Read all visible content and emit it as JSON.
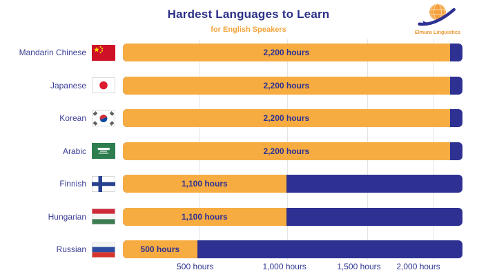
{
  "brand": {
    "name": "Elmura Linguistics"
  },
  "chart_data": {
    "type": "bar",
    "orientation": "horizontal",
    "title": "Hardest Languages to Learn",
    "subtitle": "for English Speakers",
    "unit": "hours",
    "categories": [
      "Mandarin Chinese",
      "Japanese",
      "Korean",
      "Arabic",
      "Finnish",
      "Hungarian",
      "Russian"
    ],
    "values": [
      2200,
      2200,
      2200,
      2200,
      1100,
      1100,
      500
    ],
    "rows": [
      {
        "label": "Mandarin Chinese",
        "flag_icon": "china-flag-icon",
        "value": 2200,
        "value_label": "2,200 hours"
      },
      {
        "label": "Japanese",
        "flag_icon": "japan-flag-icon",
        "value": 2200,
        "value_label": "2,200 hours"
      },
      {
        "label": "Korean",
        "flag_icon": "south-korea-flag-icon",
        "value": 2200,
        "value_label": "2,200 hours"
      },
      {
        "label": "Arabic",
        "flag_icon": "saudi-arabia-flag-icon",
        "value": 2200,
        "value_label": "2,200 hours"
      },
      {
        "label": "Finnish",
        "flag_icon": "finland-flag-icon",
        "value": 1100,
        "value_label": "1,100 hours"
      },
      {
        "label": "Hungarian",
        "flag_icon": "hungary-flag-icon",
        "value": 1100,
        "value_label": "1,100 hours"
      },
      {
        "label": "Russian",
        "flag_icon": "russia-flag-icon",
        "value": 500,
        "value_label": "500 hours"
      }
    ],
    "x_ticks": [
      {
        "value": 500,
        "label": "500 hours",
        "pos_pct": 21.3
      },
      {
        "value": 1000,
        "label": "1,000 hours",
        "pos_pct": 47.6
      },
      {
        "value": 1500,
        "label": "1,500 hours",
        "pos_pct": 69.5
      },
      {
        "value": 2000,
        "label": "2,000 hours",
        "pos_pct": 87.0
      }
    ],
    "gridline_positions_pct": [
      22.4,
      48.4,
      72.0,
      91.5
    ],
    "xlim": [
      0,
      2285
    ],
    "grid": true,
    "legend": "none",
    "colors": {
      "bar_fill": "#F7AC42",
      "bar_track": "#2E3192",
      "title": "#2B2F87",
      "subtitle": "#F2A43C",
      "label": "#3A3E96",
      "axis_label": "#2F3590",
      "gridline": "#E4E4E4"
    }
  }
}
